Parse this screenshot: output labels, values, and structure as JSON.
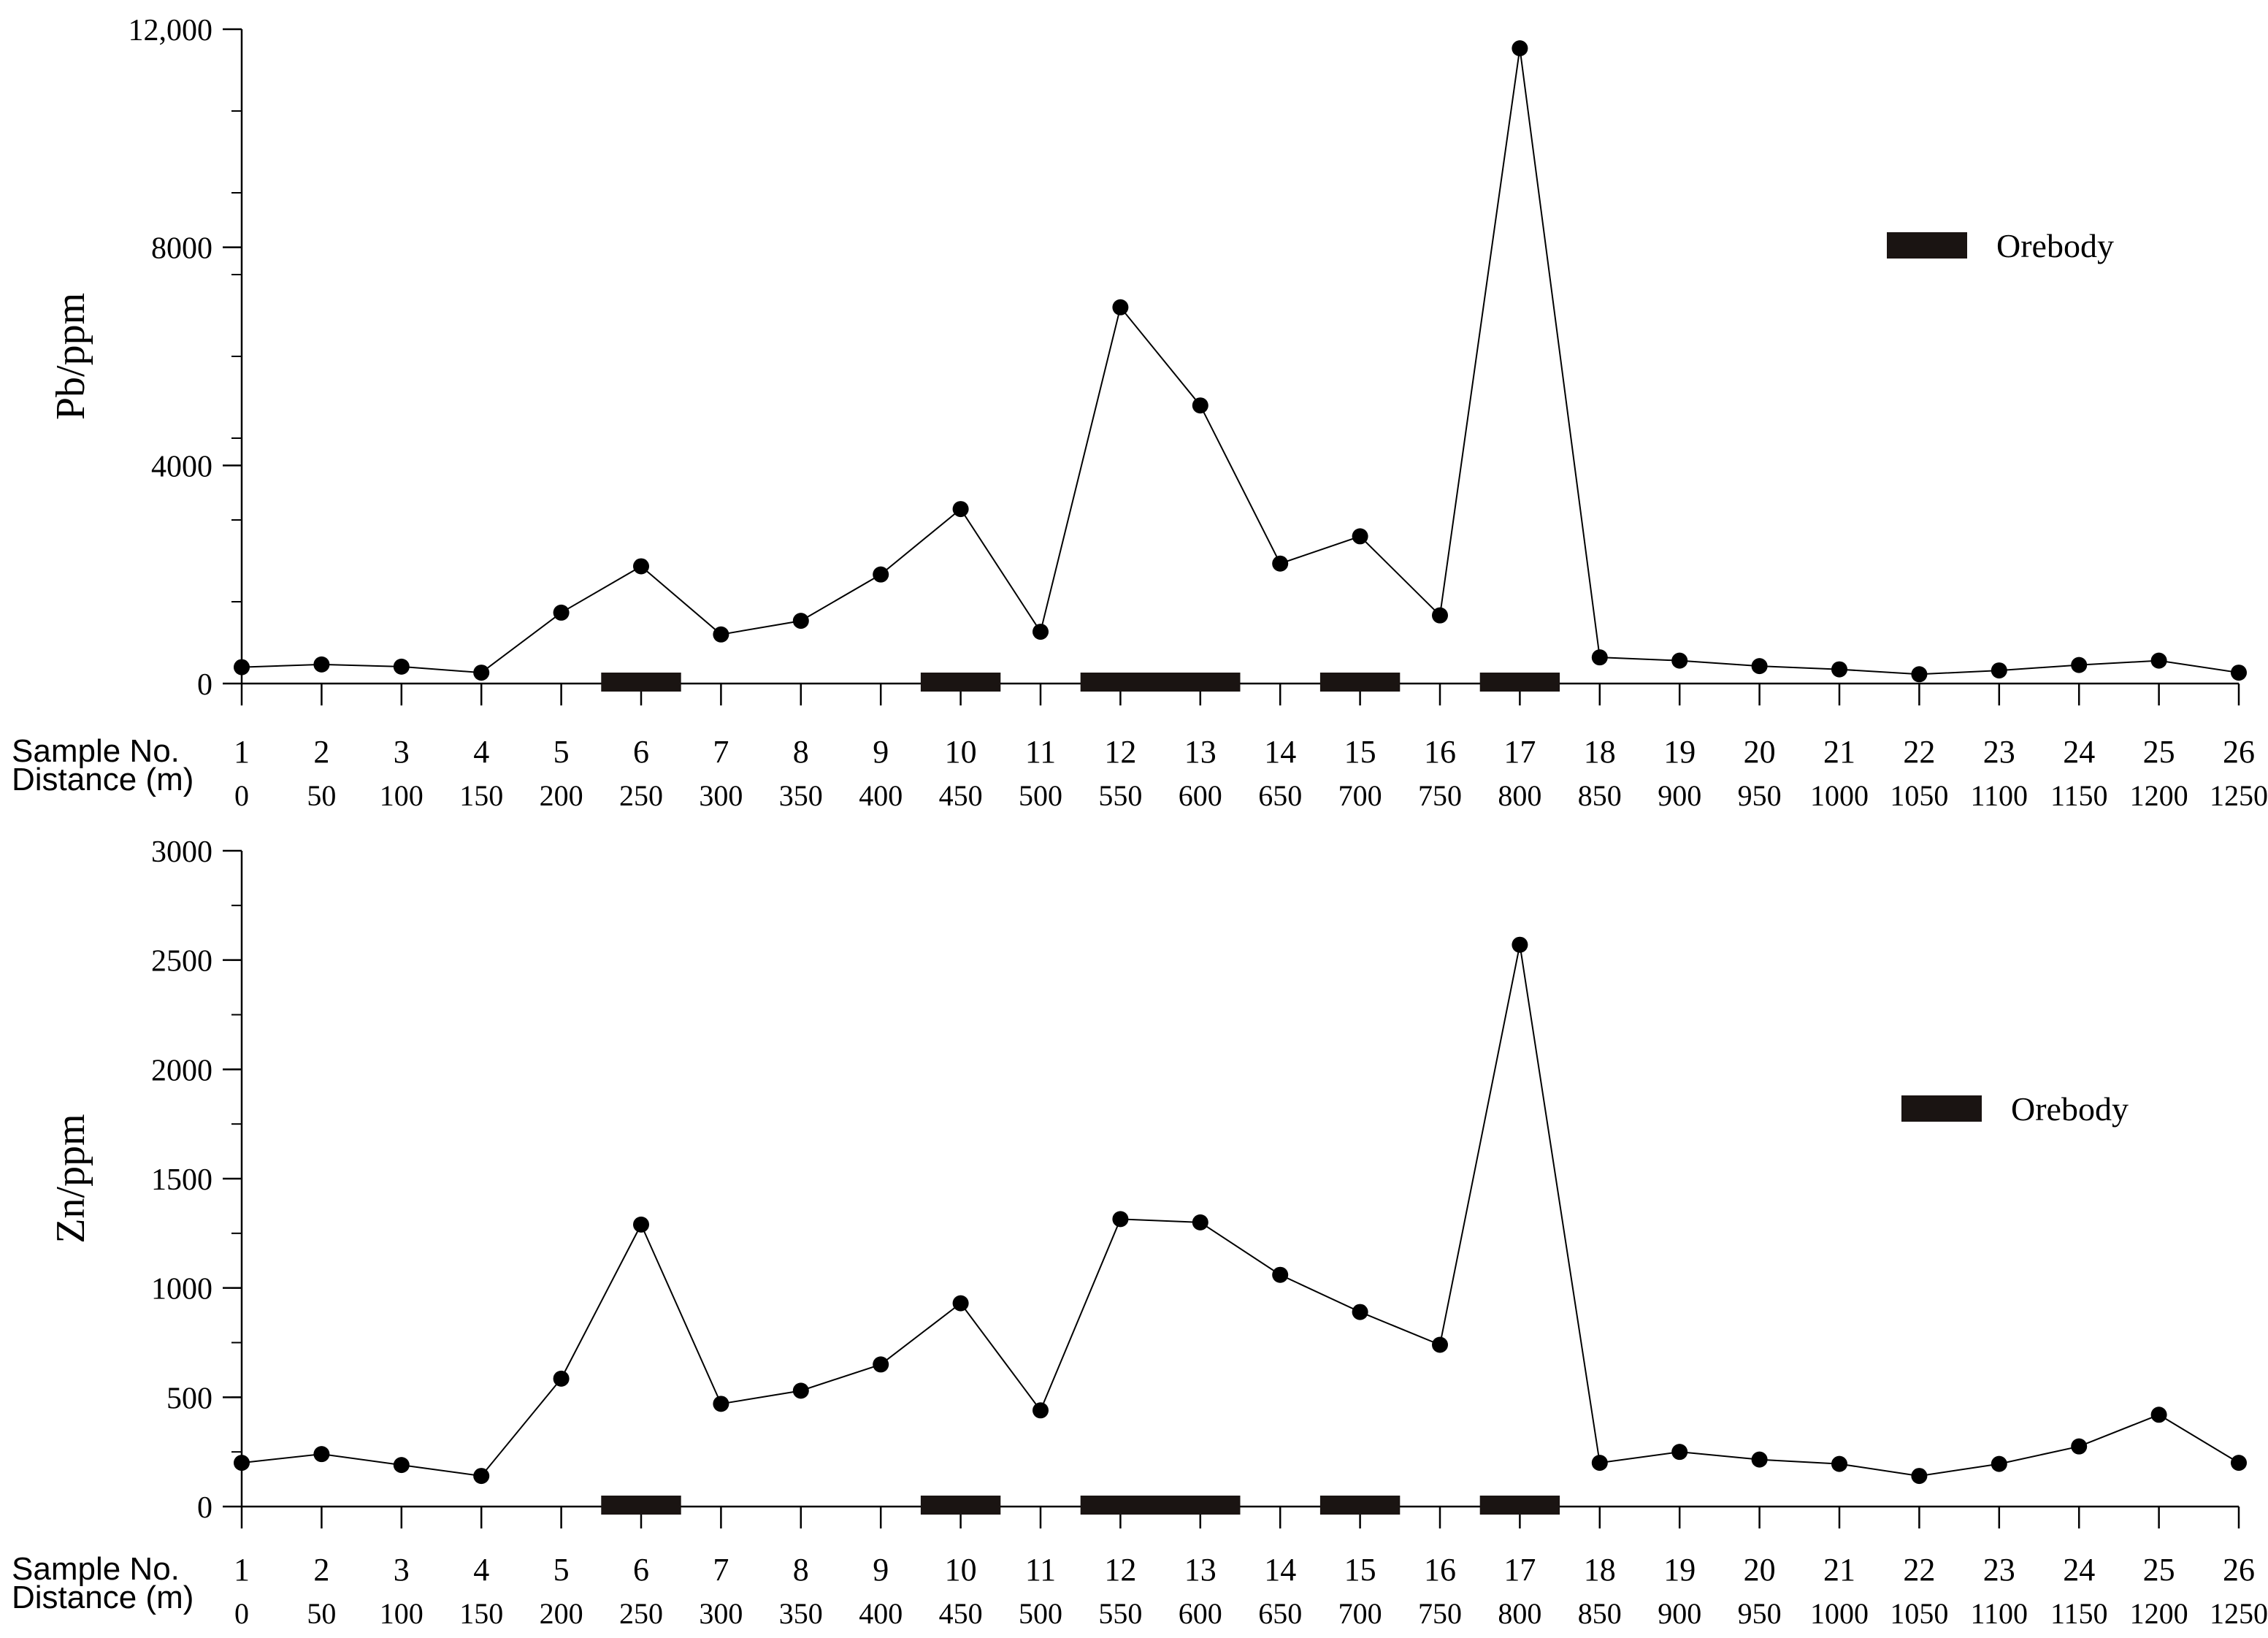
{
  "chart_data": [
    {
      "type": "line",
      "ylabel": "Pb/ppm",
      "ylim": [
        0,
        12000
      ],
      "yticks": [
        "0",
        "4000",
        "8000",
        "12,000"
      ],
      "row_labels": [
        "Sample No.",
        "Distance (m)"
      ],
      "x_sample": [
        "1",
        "2",
        "3",
        "4",
        "5",
        "6",
        "7",
        "8",
        "9",
        "10",
        "11",
        "12",
        "13",
        "14",
        "15",
        "16",
        "17",
        "18",
        "19",
        "20",
        "21",
        "22",
        "23",
        "24",
        "25",
        "26"
      ],
      "x_distance": [
        "0",
        "50",
        "100",
        "150",
        "200",
        "250",
        "300",
        "350",
        "400",
        "450",
        "500",
        "550",
        "600",
        "650",
        "700",
        "750",
        "800",
        "850",
        "900",
        "950",
        "1000",
        "1050",
        "1100",
        "1150",
        "1200",
        "1250"
      ],
      "values": [
        300,
        350,
        310,
        200,
        1300,
        2150,
        900,
        1150,
        2000,
        3200,
        950,
        6900,
        5100,
        2200,
        2700,
        1250,
        11650,
        480,
        420,
        320,
        260,
        170,
        240,
        340,
        420,
        200
      ],
      "orebodies": [
        [
          5.5,
          6.5
        ],
        [
          9.5,
          10.5
        ],
        [
          11.5,
          13.5
        ],
        [
          14.5,
          15.5
        ],
        [
          16.5,
          17.5
        ]
      ],
      "legend": {
        "label": "Orebody",
        "position": "right"
      }
    },
    {
      "type": "line",
      "ylabel": "Zn/ppm",
      "ylim": [
        0,
        3000
      ],
      "yticks": [
        "0",
        "500",
        "1000",
        "1500",
        "2000",
        "2500",
        "3000"
      ],
      "row_labels": [
        "Sample No.",
        "Distance (m)"
      ],
      "x_sample": [
        "1",
        "2",
        "3",
        "4",
        "5",
        "6",
        "7",
        "8",
        "9",
        "10",
        "11",
        "12",
        "13",
        "14",
        "15",
        "16",
        "17",
        "18",
        "19",
        "20",
        "21",
        "22",
        "23",
        "24",
        "25",
        "26"
      ],
      "x_distance": [
        "0",
        "50",
        "100",
        "150",
        "200",
        "250",
        "300",
        "350",
        "400",
        "450",
        "500",
        "550",
        "600",
        "650",
        "700",
        "750",
        "800",
        "850",
        "900",
        "950",
        "1000",
        "1050",
        "1100",
        "1150",
        "1200",
        "1250"
      ],
      "values": [
        200,
        240,
        190,
        140,
        585,
        1290,
        470,
        530,
        650,
        930,
        440,
        1315,
        1300,
        1060,
        890,
        740,
        2570,
        200,
        250,
        215,
        195,
        140,
        195,
        275,
        420,
        200
      ],
      "orebodies": [
        [
          5.5,
          6.5
        ],
        [
          9.5,
          10.5
        ],
        [
          11.5,
          13.5
        ],
        [
          14.5,
          15.5
        ],
        [
          16.5,
          17.5
        ]
      ],
      "legend": {
        "label": "Orebody",
        "position": "right"
      }
    }
  ]
}
